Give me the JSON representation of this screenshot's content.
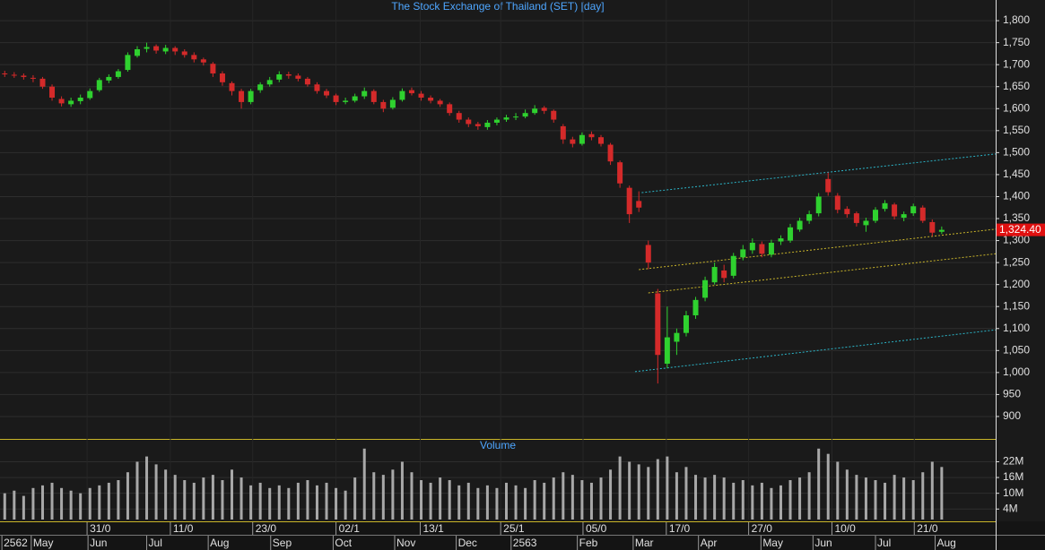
{
  "chart_data": {
    "type": "candlestick",
    "title": "The Stock Exchange of Thailand (SET) [day]",
    "volume_title": "Volume",
    "up_color": "#2fd12f",
    "down_color": "#d42a2a",
    "volume_color": "#a8a8a8",
    "grid": true,
    "xlim": [
      -0.5,
      104.7
    ],
    "ylim": [
      849,
      1847
    ],
    "vlim": [
      0,
      30000000
    ],
    "yticks": [
      900,
      950,
      {
        "value": 1000,
        "label": "1,000"
      },
      {
        "value": 1050,
        "label": "1,050"
      },
      {
        "value": 1100,
        "label": "1,100"
      },
      {
        "value": 1150,
        "label": "1,150"
      },
      {
        "value": 1200,
        "label": "1,200"
      },
      {
        "value": 1250,
        "label": "1,250"
      },
      {
        "value": 1300,
        "label": "1,300"
      },
      {
        "value": 1350,
        "label": "1,350"
      },
      {
        "value": 1400,
        "label": "1,400"
      },
      {
        "value": 1450,
        "label": "1,450"
      },
      {
        "value": 1500,
        "label": "1,500"
      },
      {
        "value": 1550,
        "label": "1,550"
      },
      {
        "value": 1600,
        "label": "1,600"
      },
      {
        "value": 1650,
        "label": "1,650"
      },
      {
        "value": 1700,
        "label": "1,700"
      },
      {
        "value": 1750,
        "label": "1,750"
      },
      {
        "value": 1800,
        "label": "1,800"
      }
    ],
    "vticks": [
      {
        "value": 4000000,
        "label": "4M"
      },
      {
        "value": 10000000,
        "label": "10M"
      },
      {
        "value": 16000000,
        "label": "16M"
      },
      {
        "value": 22000000,
        "label": "22M"
      }
    ],
    "xticks": [
      {
        "value": 8.7,
        "label": "31/0"
      },
      {
        "value": 17.5,
        "label": "11/0"
      },
      {
        "value": 26.2,
        "label": "23/0"
      },
      {
        "value": 35,
        "label": "02/1"
      },
      {
        "value": 43.9,
        "label": "13/1"
      },
      {
        "value": 52.4,
        "label": "25/1"
      },
      {
        "value": 61.1,
        "label": "05/0"
      },
      {
        "value": 69.9,
        "label": "17/0"
      },
      {
        "value": 78.6,
        "label": "27/0"
      },
      {
        "value": 87.4,
        "label": "10/0"
      },
      {
        "value": 96.1,
        "label": "21/0"
      }
    ],
    "xticks_months": [
      {
        "value": -0.3,
        "label": "2562"
      },
      {
        "value": 2.8,
        "label": "May"
      },
      {
        "value": 8.8,
        "label": "Jun"
      },
      {
        "value": 15,
        "label": "Jul"
      },
      {
        "value": 21.5,
        "label": "Aug"
      },
      {
        "value": 28.1,
        "label": "Sep"
      },
      {
        "value": 34.7,
        "label": "Oct"
      },
      {
        "value": 41.2,
        "label": "Nov"
      },
      {
        "value": 47.7,
        "label": "Dec"
      },
      {
        "value": 53.5,
        "label": "2563"
      },
      {
        "value": 60.5,
        "label": "Feb"
      },
      {
        "value": 66.4,
        "label": "Mar"
      },
      {
        "value": 73.3,
        "label": "Apr"
      },
      {
        "value": 79.9,
        "label": "May"
      },
      {
        "value": 85.4,
        "label": "Jun"
      },
      {
        "value": 92,
        "label": "Jul"
      },
      {
        "value": 98.3,
        "label": "Aug"
      }
    ],
    "open": [
      1680,
      1677,
      1675,
      1670,
      1668,
      1650,
      1622,
      1610,
      1617,
      1624,
      1642,
      1664,
      1672,
      1688,
      1720,
      1736,
      1742,
      1730,
      1738,
      1730,
      1722,
      1712,
      1702,
      1680,
      1658,
      1640,
      1615,
      1642,
      1655,
      1666,
      1678,
      1675,
      1668,
      1655,
      1640,
      1630,
      1615,
      1618,
      1628,
      1640,
      1615,
      1602,
      1620,
      1642,
      1634,
      1625,
      1618,
      1610,
      1590,
      1575,
      1565,
      1558,
      1568,
      1575,
      1580,
      1582,
      1590,
      1602,
      1595,
      1560,
      1530,
      1520,
      1542,
      1535,
      1518,
      1478,
      1420,
      1390,
      1290,
      1180,
      1020,
      1070,
      1090,
      1130,
      1170,
      1205,
      1232,
      1220,
      1262,
      1278,
      1292,
      1268,
      1298,
      1300,
      1325,
      1345,
      1362,
      1440,
      1402,
      1372,
      1362,
      1335,
      1345,
      1372,
      1382,
      1352,
      1362,
      1375,
      1342,
      1320
    ],
    "high": [
      1686,
      1683,
      1680,
      1676,
      1672,
      1655,
      1628,
      1625,
      1632,
      1646,
      1670,
      1678,
      1690,
      1728,
      1742,
      1750,
      1746,
      1745,
      1742,
      1735,
      1728,
      1716,
      1706,
      1685,
      1662,
      1645,
      1645,
      1660,
      1672,
      1685,
      1684,
      1680,
      1672,
      1660,
      1645,
      1634,
      1625,
      1634,
      1648,
      1644,
      1620,
      1626,
      1646,
      1648,
      1640,
      1630,
      1622,
      1614,
      1595,
      1580,
      1570,
      1574,
      1580,
      1586,
      1590,
      1598,
      1608,
      1606,
      1598,
      1565,
      1536,
      1546,
      1548,
      1540,
      1522,
      1482,
      1425,
      1412,
      1300,
      1190,
      1150,
      1100,
      1140,
      1172,
      1218,
      1250,
      1245,
      1272,
      1290,
      1305,
      1298,
      1302,
      1312,
      1338,
      1352,
      1368,
      1408,
      1455,
      1408,
      1378,
      1366,
      1352,
      1376,
      1392,
      1386,
      1366,
      1384,
      1380,
      1348,
      1332
    ],
    "low": [
      1672,
      1670,
      1666,
      1660,
      1645,
      1618,
      1605,
      1604,
      1610,
      1620,
      1638,
      1658,
      1668,
      1684,
      1716,
      1728,
      1725,
      1724,
      1722,
      1716,
      1705,
      1698,
      1672,
      1652,
      1630,
      1600,
      1610,
      1636,
      1650,
      1660,
      1668,
      1662,
      1650,
      1634,
      1624,
      1608,
      1610,
      1614,
      1622,
      1610,
      1592,
      1598,
      1616,
      1630,
      1618,
      1612,
      1604,
      1584,
      1568,
      1558,
      1552,
      1552,
      1562,
      1570,
      1574,
      1578,
      1586,
      1588,
      1568,
      1520,
      1512,
      1516,
      1528,
      1514,
      1472,
      1420,
      1340,
      1365,
      1235,
      975,
      1010,
      1040,
      1082,
      1122,
      1162,
      1200,
      1205,
      1214,
      1255,
      1270,
      1262,
      1262,
      1290,
      1295,
      1320,
      1338,
      1355,
      1402,
      1362,
      1352,
      1332,
      1320,
      1340,
      1366,
      1348,
      1344,
      1356,
      1340,
      1310,
      1315
    ],
    "close": [
      1678,
      1676,
      1672,
      1668,
      1650,
      1625,
      1612,
      1618,
      1625,
      1640,
      1665,
      1672,
      1685,
      1722,
      1735,
      1740,
      1732,
      1738,
      1730,
      1722,
      1712,
      1705,
      1680,
      1660,
      1640,
      1615,
      1640,
      1655,
      1665,
      1678,
      1675,
      1668,
      1655,
      1640,
      1630,
      1615,
      1618,
      1628,
      1640,
      1615,
      1600,
      1620,
      1640,
      1635,
      1625,
      1618,
      1610,
      1590,
      1575,
      1565,
      1560,
      1568,
      1575,
      1580,
      1582,
      1590,
      1600,
      1595,
      1575,
      1530,
      1520,
      1540,
      1535,
      1520,
      1480,
      1430,
      1360,
      1375,
      1250,
      1040,
      1080,
      1090,
      1130,
      1165,
      1210,
      1240,
      1215,
      1265,
      1280,
      1295,
      1270,
      1295,
      1305,
      1330,
      1345,
      1360,
      1400,
      1410,
      1370,
      1360,
      1340,
      1345,
      1370,
      1385,
      1355,
      1360,
      1378,
      1345,
      1318,
      1324.4
    ],
    "volume": [
      10000000,
      11000000,
      9000000,
      12000000,
      13000000,
      14000000,
      12000000,
      11000000,
      10000000,
      12000000,
      13000000,
      14000000,
      15000000,
      18000000,
      22000000,
      24000000,
      21000000,
      19000000,
      17000000,
      15000000,
      14000000,
      16000000,
      17000000,
      15000000,
      19000000,
      16000000,
      13000000,
      14000000,
      12000000,
      13000000,
      12000000,
      14000000,
      15000000,
      13000000,
      14000000,
      12000000,
      11000000,
      16000000,
      27000000,
      18000000,
      17000000,
      19000000,
      22000000,
      18000000,
      15000000,
      14000000,
      16000000,
      15000000,
      13000000,
      14000000,
      12000000,
      13000000,
      12000000,
      14000000,
      13000000,
      12000000,
      15000000,
      14000000,
      16000000,
      18000000,
      17000000,
      15000000,
      14000000,
      16000000,
      19000000,
      24000000,
      22000000,
      21000000,
      20000000,
      23000000,
      24000000,
      18000000,
      20000000,
      17000000,
      16000000,
      17000000,
      16000000,
      14000000,
      15000000,
      13000000,
      14000000,
      12000000,
      13000000,
      15000000,
      16000000,
      18000000,
      27000000,
      25000000,
      22000000,
      19000000,
      17000000,
      16000000,
      15000000,
      14000000,
      17000000,
      16000000,
      15000000,
      18000000,
      22000000,
      20000000
    ],
    "last_price_label": "1,324.40",
    "trend_lines": [
      {
        "color": "#2bb5c8",
        "points": [
          [
            67.3,
            1409
          ],
          [
            104.7,
            1497
          ]
        ]
      },
      {
        "color": "#c8b42a",
        "points": [
          [
            67,
            1234
          ],
          [
            104.7,
            1326
          ]
        ]
      },
      {
        "color": "#c8b42a",
        "points": [
          [
            68,
            1181
          ],
          [
            104.7,
            1270
          ]
        ]
      },
      {
        "color": "#2bb5c8",
        "points": [
          [
            66.6,
            1002
          ],
          [
            104.7,
            1097
          ]
        ]
      }
    ]
  }
}
